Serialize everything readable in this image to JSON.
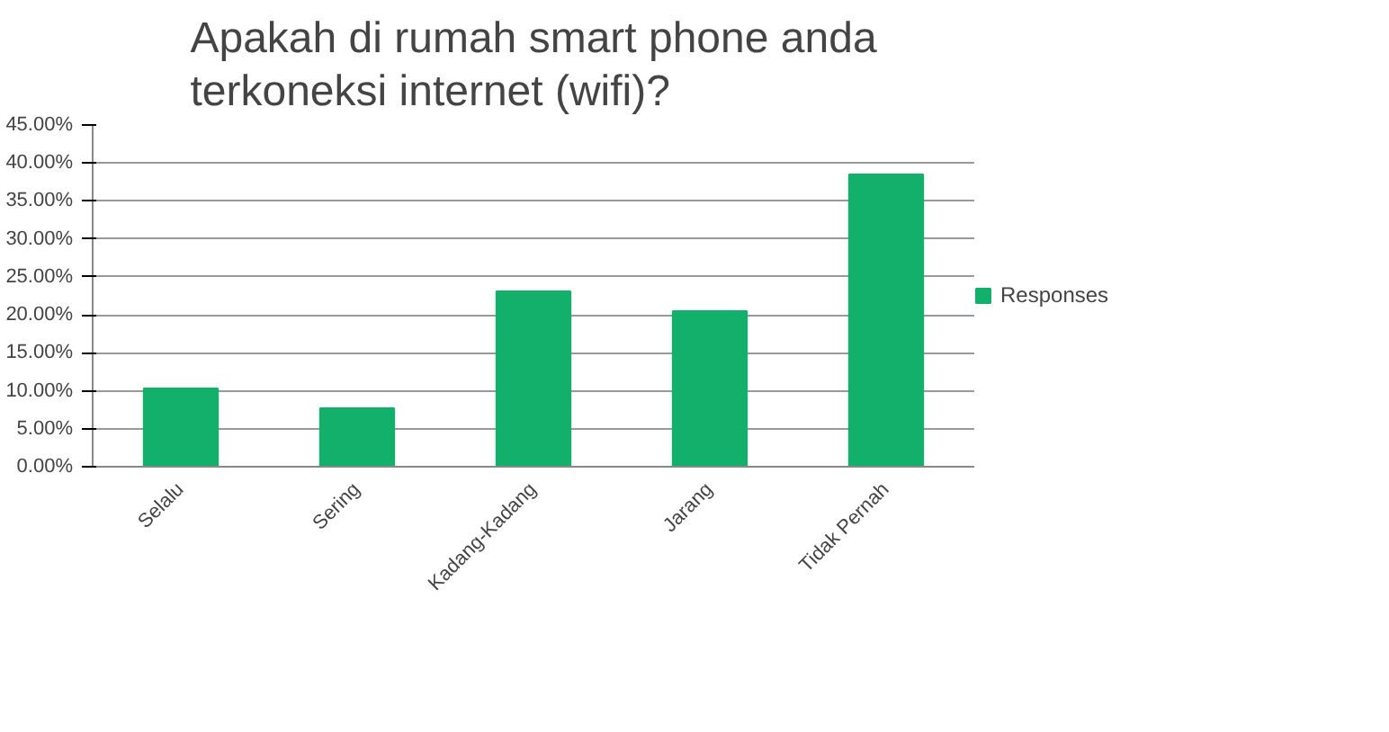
{
  "chart_data": {
    "type": "bar",
    "title": "Apakah di rumah smart phone anda terkoneksi internet (wifi)?",
    "categories": [
      "Selalu",
      "Sering",
      "Kadang-Kadang",
      "Jarang",
      "Tidak Pernah"
    ],
    "series": [
      {
        "name": "Responses",
        "color": "#12b06a",
        "values": [
          10.3,
          7.7,
          23.1,
          20.5,
          38.5
        ]
      }
    ],
    "ylim": [
      0,
      45
    ],
    "yticks": [
      {
        "value": 0,
        "label": "0.00%"
      },
      {
        "value": 5,
        "label": "5.00%"
      },
      {
        "value": 10,
        "label": "10.00%"
      },
      {
        "value": 15,
        "label": "15.00%"
      },
      {
        "value": 20,
        "label": "20.00%"
      },
      {
        "value": 25,
        "label": "25.00%"
      },
      {
        "value": 30,
        "label": "30.00%"
      },
      {
        "value": 35,
        "label": "35.00%"
      },
      {
        "value": 40,
        "label": "40.00%"
      },
      {
        "value": 45,
        "label": "45.00%"
      }
    ],
    "grid": "y",
    "legend": "right"
  }
}
